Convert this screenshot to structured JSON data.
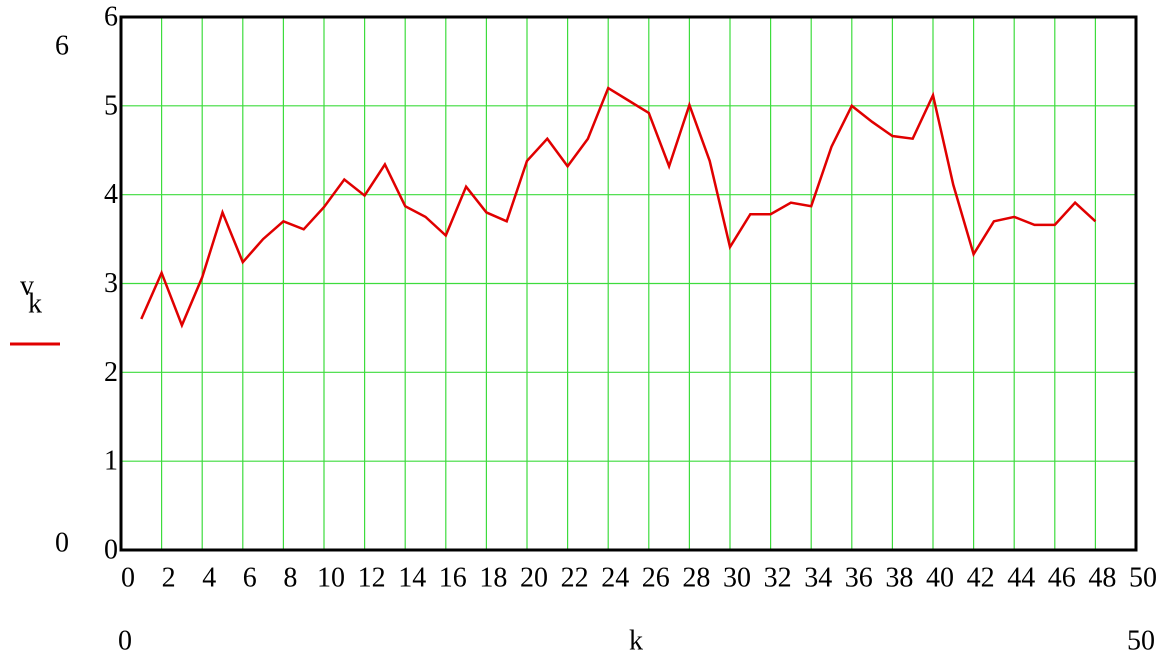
{
  "chart_data": {
    "type": "line",
    "y_label": {
      "base": "v",
      "subscript": "k"
    },
    "xlabel": "k",
    "x": [
      1,
      2,
      3,
      4,
      5,
      6,
      7,
      8,
      9,
      10,
      11,
      12,
      13,
      14,
      15,
      16,
      17,
      18,
      19,
      20,
      21,
      22,
      23,
      24,
      25,
      26,
      27,
      28,
      29,
      30,
      31,
      32,
      33,
      34,
      35,
      36,
      37,
      38,
      39,
      40,
      41,
      42,
      43,
      44,
      45,
      46,
      47,
      48
    ],
    "series": [
      {
        "name": "v",
        "color": "#e00000",
        "values": [
          2.6,
          3.12,
          2.53,
          3.07,
          3.8,
          3.24,
          3.5,
          3.7,
          3.61,
          3.86,
          4.17,
          3.99,
          4.34,
          3.87,
          3.75,
          3.54,
          4.09,
          3.8,
          3.7,
          4.38,
          4.63,
          4.32,
          4.63,
          5.2,
          5.06,
          4.92,
          4.32,
          5.01,
          4.38,
          3.41,
          3.78,
          3.78,
          3.91,
          3.87,
          4.54,
          5.0,
          4.82,
          4.66,
          4.63,
          5.12,
          4.11,
          3.33,
          3.7,
          3.75,
          3.66,
          3.66,
          3.91,
          3.7
        ]
      }
    ],
    "xlim": [
      0,
      50
    ],
    "xticks": [
      0,
      2,
      4,
      6,
      8,
      10,
      12,
      14,
      16,
      18,
      20,
      22,
      24,
      26,
      28,
      30,
      32,
      34,
      36,
      38,
      40,
      42,
      44,
      46,
      48,
      50
    ],
    "ylim": [
      0,
      6
    ],
    "yticks": [
      0,
      1,
      2,
      3,
      4,
      5,
      6
    ],
    "grid": true
  }
}
